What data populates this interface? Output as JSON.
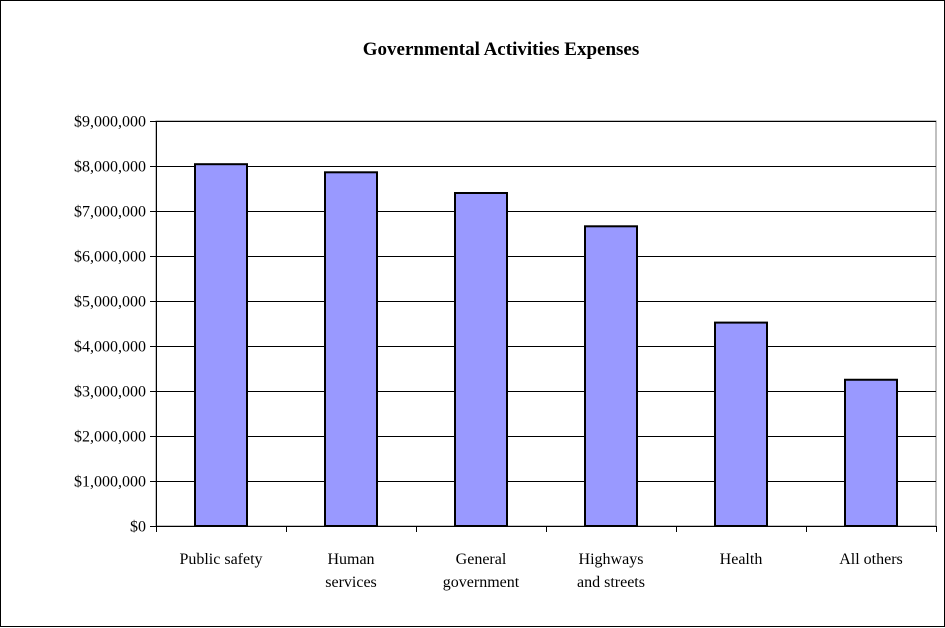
{
  "chart_data": {
    "type": "bar",
    "title": "Governmental Activities Expenses",
    "xlabel": "",
    "ylabel": "",
    "categories": [
      [
        "Public safety"
      ],
      [
        "Human",
        "services"
      ],
      [
        "General",
        "government"
      ],
      [
        "Highways",
        "and streets"
      ],
      [
        "Health"
      ],
      [
        "All others"
      ]
    ],
    "values": [
      8040000,
      7860000,
      7400000,
      6660000,
      4520000,
      3250000
    ],
    "ylim": [
      0,
      9000000
    ],
    "y_ticks": [
      0,
      1000000,
      2000000,
      3000000,
      4000000,
      5000000,
      6000000,
      7000000,
      8000000,
      9000000
    ],
    "y_tick_labels": [
      "$0",
      "$1,000,000",
      "$2,000,000",
      "$3,000,000",
      "$4,000,000",
      "$5,000,000",
      "$6,000,000",
      "$7,000,000",
      "$8,000,000",
      "$9,000,000"
    ],
    "grid": true,
    "legend": "none",
    "bar_color": "#9999ff",
    "plot_background": "#ffffff"
  }
}
